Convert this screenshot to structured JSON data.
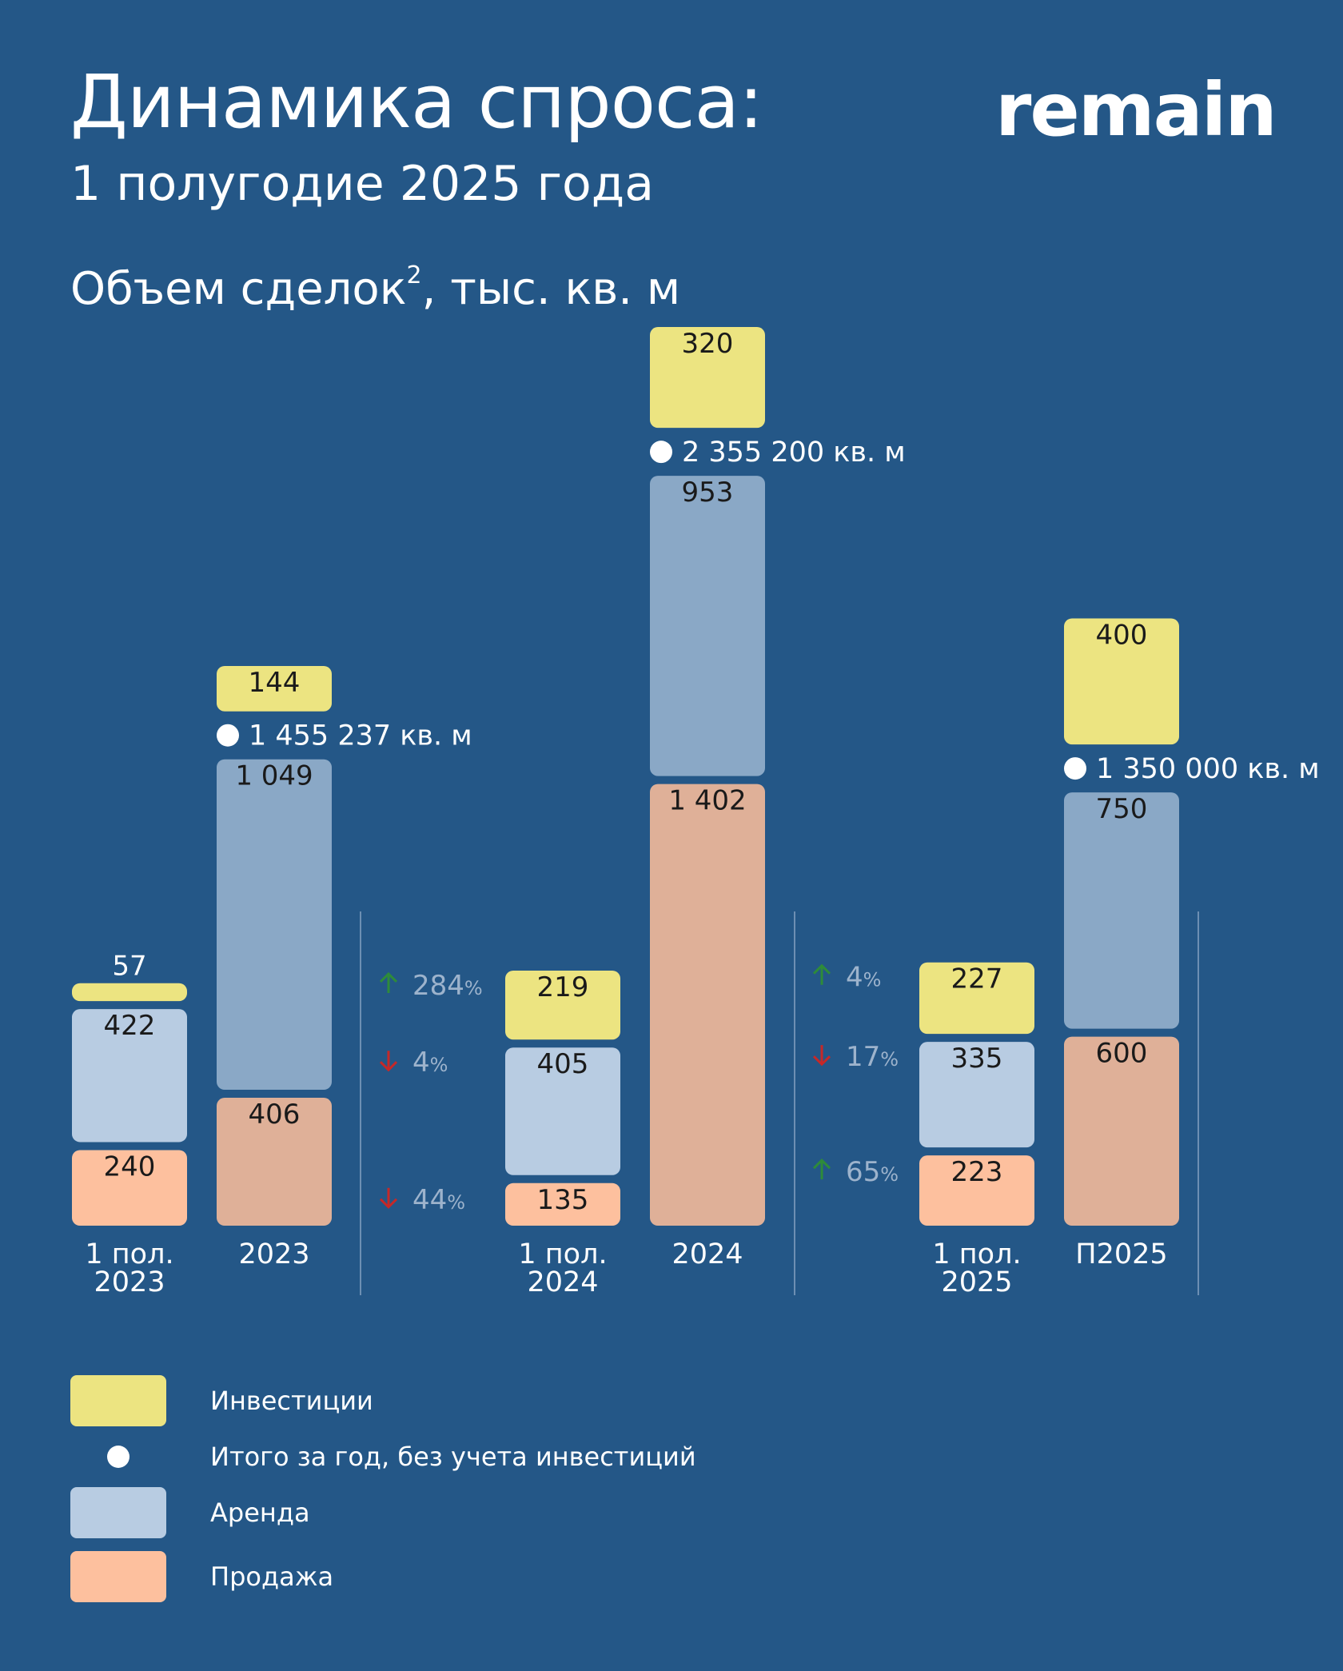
{
  "header": {
    "title": "Динамика спроса:",
    "subtitle": "1 полугодие 2025 года",
    "chart_heading": "Объем сделок",
    "chart_heading_sup": "2",
    "chart_heading_unit": ", тыс. кв. м",
    "logo": "remain"
  },
  "colors": {
    "background": "#245787",
    "investments_h1": "#ECE481",
    "lease_h1": "#B8CCE2",
    "sales_h1": "#FDC09E",
    "lease_year": "#8AA8C6",
    "sales_year": "#DFB098",
    "up_arrow": "#2E8B3A",
    "down_arrow": "#C62828",
    "change_text": "#9DB3CC"
  },
  "chart_data": {
    "type": "bar",
    "stacked": true,
    "unit": "тыс. кв. м",
    "categories": [
      "1 пол. 2023",
      "2023",
      "1 пол. 2024",
      "2024",
      "1 пол. 2025",
      "П2025"
    ],
    "series": [
      {
        "name": "Продажа",
        "values": [
          240,
          406,
          135,
          1402,
          223,
          600
        ],
        "labels": [
          "240",
          "406",
          "135",
          "1 402",
          "223",
          "600"
        ]
      },
      {
        "name": "Аренда",
        "values": [
          422,
          1049,
          405,
          953,
          335,
          750
        ],
        "labels": [
          "422",
          "1 049",
          "405",
          "953",
          "335",
          "750"
        ]
      },
      {
        "name": "Инвестиции",
        "values": [
          57,
          144,
          219,
          320,
          227,
          400
        ],
        "labels": [
          "57",
          "144",
          "219",
          "320",
          "227",
          "400"
        ]
      }
    ],
    "year_totals": [
      {
        "category": "2023",
        "label": "1 455 237 кв. м"
      },
      {
        "category": "2024",
        "label": "2 355 200 кв. м"
      },
      {
        "category": "П2025",
        "label": "1 350 000 кв. м"
      }
    ],
    "changes": [
      {
        "between": [
          "1 пол. 2023",
          "1 пол. 2024"
        ],
        "items": [
          {
            "series": "Инвестиции",
            "direction": "up",
            "value": "284",
            "unit": "%"
          },
          {
            "series": "Аренда",
            "direction": "down",
            "value": "4",
            "unit": "%"
          },
          {
            "series": "Продажа",
            "direction": "down",
            "value": "44",
            "unit": "%"
          }
        ]
      },
      {
        "between": [
          "1 пол. 2024",
          "1 пол. 2025"
        ],
        "items": [
          {
            "series": "Инвестиции",
            "direction": "up",
            "value": "4",
            "unit": "%"
          },
          {
            "series": "Аренда",
            "direction": "down",
            "value": "17",
            "unit": "%"
          },
          {
            "series": "Продажа",
            "direction": "up",
            "value": "65",
            "unit": "%"
          }
        ]
      }
    ],
    "legend": [
      {
        "key": "investments",
        "label": "Инвестиции"
      },
      {
        "key": "total",
        "label": "Итого за год, без учета инвестиций"
      },
      {
        "key": "lease",
        "label": "Аренда"
      },
      {
        "key": "sales",
        "label": "Продажа"
      }
    ],
    "grid": false
  }
}
